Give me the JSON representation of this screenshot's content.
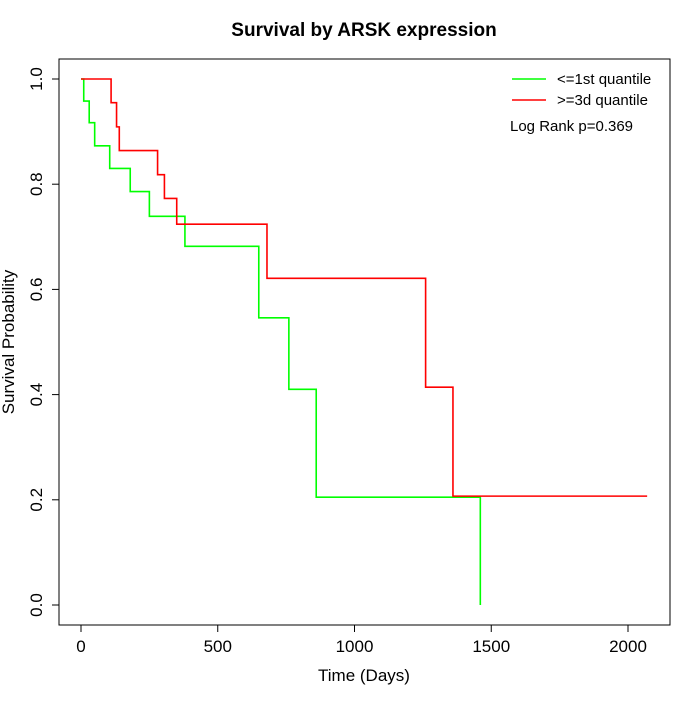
{
  "chart_data": {
    "type": "line",
    "title": "Survival by ARSK expression",
    "xlabel": "Time (Days)",
    "ylabel": "Survival Probability",
    "xlim": [
      0,
      2070
    ],
    "ylim": [
      0,
      1
    ],
    "x_ticks": [
      "0",
      "500",
      "1000",
      "1500",
      "2000"
    ],
    "y_ticks": [
      "0.0",
      "0.2",
      "0.4",
      "0.6",
      "0.8",
      "1.0"
    ],
    "legend_position": "top-right",
    "annotation": "Log Rank p=0.369",
    "step": true,
    "series": [
      {
        "name": "<=1st quantile",
        "color": "#00ff00",
        "x": [
          0,
          10,
          30,
          50,
          105,
          180,
          250,
          380,
          650,
          760,
          860,
          1460,
          1460
        ],
        "y": [
          1.0,
          0.958,
          0.917,
          0.873,
          0.83,
          0.786,
          0.739,
          0.682,
          0.546,
          0.41,
          0.205,
          0.205,
          0.0
        ]
      },
      {
        "name": ">=3d quantile",
        "color": "#ff0000",
        "x": [
          0,
          110,
          130,
          140,
          280,
          305,
          350,
          680,
          1260,
          1360,
          2070
        ],
        "y": [
          1.0,
          0.955,
          0.909,
          0.864,
          0.818,
          0.773,
          0.724,
          0.621,
          0.414,
          0.207,
          0.207
        ]
      }
    ]
  }
}
